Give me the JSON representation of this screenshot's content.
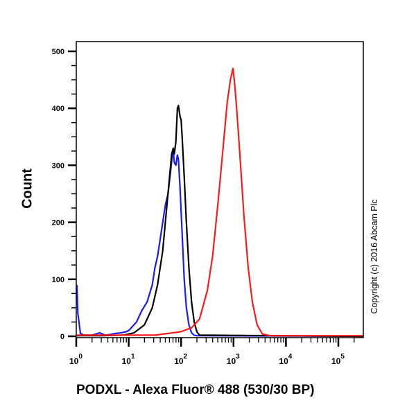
{
  "chart_data": {
    "type": "line",
    "subtype": "flow-cytometry-histogram",
    "title": "",
    "xlabel": "PODXL - Alexa Fluor® 488 (530/30 BP)",
    "ylabel": "Count",
    "x_scale": "log10",
    "xlim": [
      1,
      250000
    ],
    "ylim": [
      0,
      520
    ],
    "x_ticks": [
      {
        "value": 1,
        "label": "10",
        "exp": "0"
      },
      {
        "value": 10,
        "label": "10",
        "exp": "1"
      },
      {
        "value": 100,
        "label": "10",
        "exp": "2"
      },
      {
        "value": 1000,
        "label": "10",
        "exp": "3"
      },
      {
        "value": 10000,
        "label": "10",
        "exp": "4"
      },
      {
        "value": 100000,
        "label": "10",
        "exp": "5"
      }
    ],
    "y_ticks": [
      0,
      100,
      200,
      300,
      400,
      500
    ],
    "y_minor_step": 25,
    "grid": false,
    "legend": null,
    "annotation": "Copyright (c) 2016 Abcam Plc",
    "series": [
      {
        "name": "blue",
        "color": "#1a1aff",
        "x_log": [
          0.0,
          0.03,
          0.08,
          0.15,
          0.3,
          0.45,
          0.55,
          0.65,
          0.75,
          0.85,
          0.95,
          1.0,
          1.05,
          1.15,
          1.25,
          1.35,
          1.45,
          1.5,
          1.55,
          1.6,
          1.65,
          1.7,
          1.75,
          1.8,
          1.83,
          1.85,
          1.87,
          1.9,
          1.93,
          1.95,
          1.98,
          2.02,
          2.06,
          2.1,
          2.15,
          2.2,
          2.25,
          2.3,
          6.0
        ],
        "values": [
          90,
          40,
          5,
          2,
          2,
          6,
          2,
          3,
          5,
          6,
          8,
          10,
          15,
          25,
          45,
          60,
          90,
          120,
          140,
          170,
          200,
          230,
          250,
          290,
          315,
          325,
          305,
          300,
          318,
          310,
          260,
          180,
          100,
          50,
          20,
          6,
          2,
          1,
          0
        ]
      },
      {
        "name": "black",
        "color": "#000000",
        "x_log": [
          0.0,
          0.5,
          0.9,
          1.1,
          1.3,
          1.45,
          1.55,
          1.65,
          1.72,
          1.78,
          1.82,
          1.85,
          1.87,
          1.9,
          1.93,
          1.95,
          1.98,
          2.0,
          2.02,
          2.06,
          2.1,
          2.15,
          2.2,
          2.25,
          2.3,
          2.35,
          6.0
        ],
        "values": [
          1,
          1,
          2,
          6,
          20,
          50,
          90,
          150,
          220,
          280,
          320,
          330,
          320,
          340,
          400,
          405,
          385,
          380,
          350,
          280,
          200,
          120,
          60,
          25,
          8,
          2,
          0
        ]
      },
      {
        "name": "red",
        "color": "#ff1a1a",
        "x_log": [
          0.0,
          1.5,
          2.0,
          2.2,
          2.35,
          2.5,
          2.6,
          2.7,
          2.8,
          2.88,
          2.94,
          2.99,
          3.02,
          3.06,
          3.12,
          3.2,
          3.28,
          3.36,
          3.45,
          3.55,
          3.7,
          6.0
        ],
        "values": [
          2,
          2,
          8,
          15,
          30,
          80,
          140,
          230,
          330,
          410,
          450,
          470,
          445,
          400,
          320,
          210,
          120,
          60,
          20,
          4,
          1,
          1
        ]
      }
    ]
  },
  "axes": {
    "y_label": "Count",
    "x_label": "PODXL - Alexa Fluor® 488 (530/30 BP)",
    "copyright": "Copyright (c) 2016 Abcam Plc"
  }
}
